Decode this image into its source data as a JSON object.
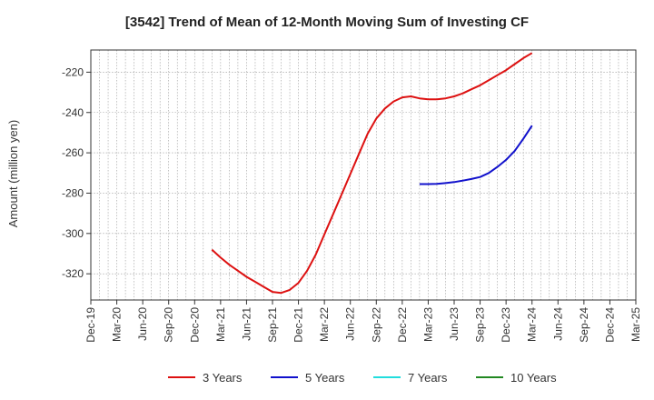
{
  "chart_data": {
    "type": "line",
    "title": "[3542]  Trend of Mean of 12-Month Moving Sum of Investing CF",
    "ylabel": "Amount (million yen)",
    "xlabel": "",
    "x_ticks": [
      "Dec-19",
      "Mar-20",
      "Jun-20",
      "Sep-20",
      "Dec-20",
      "Mar-21",
      "Jun-21",
      "Sep-21",
      "Dec-21",
      "Mar-22",
      "Jun-22",
      "Sep-22",
      "Dec-22",
      "Mar-23",
      "Jun-23",
      "Sep-23",
      "Dec-23",
      "Mar-24",
      "Jun-24",
      "Sep-24",
      "Dec-24",
      "Mar-25"
    ],
    "y_ticks": [
      -220,
      -240,
      -260,
      -280,
      -300,
      -320
    ],
    "ylim": [
      -333,
      -209
    ],
    "grid": true,
    "legend_position": "bottom",
    "series": [
      {
        "name": "3 Years",
        "color": "#dd1111",
        "x": [
          "2021-02",
          "2021-03",
          "2021-04",
          "2021-05",
          "2021-06",
          "2021-07",
          "2021-08",
          "2021-09",
          "2021-10",
          "2021-11",
          "2021-12",
          "2022-01",
          "2022-02",
          "2022-03",
          "2022-04",
          "2022-05",
          "2022-06",
          "2022-07",
          "2022-08",
          "2022-09",
          "2022-10",
          "2022-11",
          "2022-12",
          "2023-01",
          "2023-02",
          "2023-03",
          "2023-04",
          "2023-05",
          "2023-06",
          "2023-07",
          "2023-08",
          "2023-09",
          "2023-10",
          "2023-11",
          "2023-12",
          "2024-01",
          "2024-02",
          "2024-03"
        ],
        "values": [
          -308,
          -312,
          -315.5,
          -318.5,
          -321.5,
          -324,
          -326.5,
          -329,
          -329.5,
          -328,
          -324.5,
          -318.5,
          -310.5,
          -300.5,
          -290.5,
          -280.5,
          -270.5,
          -260.5,
          -250.5,
          -243,
          -238,
          -234.5,
          -232.5,
          -232,
          -233,
          -233.5,
          -233.5,
          -233,
          -232,
          -230.5,
          -228.5,
          -226.5,
          -224,
          -221.5,
          -219,
          -216,
          -213,
          -210.5
        ]
      },
      {
        "name": "5 Years",
        "color": "#1111cc",
        "x": [
          "2023-02",
          "2023-03",
          "2023-04",
          "2023-05",
          "2023-06",
          "2023-07",
          "2023-08",
          "2023-09",
          "2023-10",
          "2023-11",
          "2023-12",
          "2024-01",
          "2024-02",
          "2024-03"
        ],
        "values": [
          -275.5,
          -275.5,
          -275.4,
          -275,
          -274.5,
          -273.8,
          -273,
          -272,
          -270,
          -267,
          -263.5,
          -259,
          -253,
          -246.5
        ]
      },
      {
        "name": "7 Years",
        "color": "#22dddd",
        "x": [],
        "values": []
      },
      {
        "name": "10 Years",
        "color": "#228822",
        "x": [],
        "values": []
      }
    ]
  }
}
